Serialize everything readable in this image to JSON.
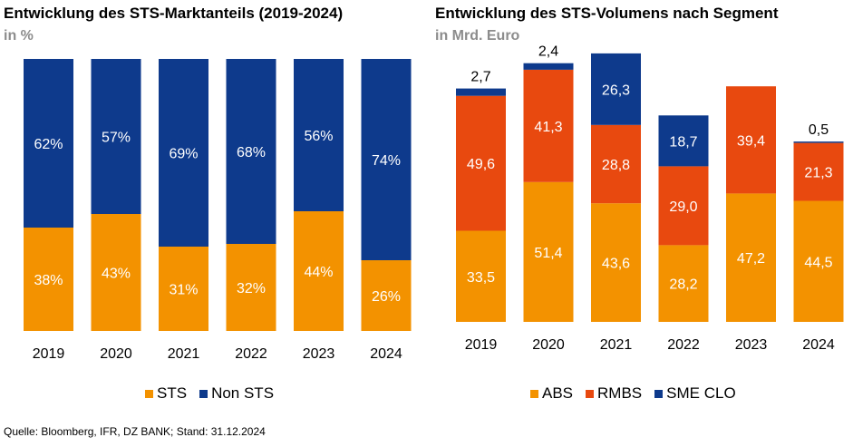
{
  "source": "Quelle: Bloomberg, IFR, DZ BANK; Stand: 31.12.2024",
  "colors": {
    "orange": "#f39200",
    "red": "#e8490f",
    "blue": "#0e3a8c"
  },
  "chart_data": [
    {
      "type": "bar",
      "stacked": true,
      "title": "Entwicklung des STS-Marktanteils (2019-2024)",
      "subtitle": "in %",
      "categories": [
        "2019",
        "2020",
        "2021",
        "2022",
        "2023",
        "2024"
      ],
      "series": [
        {
          "name": "STS",
          "color": "#f39200",
          "values": [
            38,
            43,
            31,
            32,
            44,
            26
          ],
          "labels": [
            "38%",
            "43%",
            "31%",
            "32%",
            "44%",
            "26%"
          ]
        },
        {
          "name": "Non STS",
          "color": "#0e3a8c",
          "values": [
            62,
            57,
            69,
            68,
            56,
            74
          ],
          "labels": [
            "62%",
            "57%",
            "69%",
            "68%",
            "56%",
            "74%"
          ]
        }
      ],
      "ylim": [
        0,
        100
      ],
      "legend_position": "bottom",
      "grid": false
    },
    {
      "type": "bar",
      "stacked": true,
      "title": "Entwicklung des STS-Volumens nach Segment",
      "subtitle": "in Mrd. Euro",
      "categories": [
        "2019",
        "2020",
        "2021",
        "2022",
        "2023",
        "2024"
      ],
      "series": [
        {
          "name": "ABS",
          "color": "#f39200",
          "values": [
            33.5,
            51.4,
            43.6,
            28.2,
            47.2,
            44.5
          ],
          "labels": [
            "33,5",
            "51,4",
            "43,6",
            "28,2",
            "47,2",
            "44,5"
          ]
        },
        {
          "name": "RMBS",
          "color": "#e8490f",
          "values": [
            49.6,
            41.3,
            28.8,
            29.0,
            39.4,
            21.3
          ],
          "labels": [
            "49,6",
            "41,3",
            "28,8",
            "29,0",
            "39,4",
            "21,3"
          ]
        },
        {
          "name": "SME CLO",
          "color": "#0e3a8c",
          "values": [
            2.7,
            2.4,
            26.3,
            18.7,
            0,
            0.5
          ],
          "labels": [
            "2,7",
            "2,4",
            "26,3",
            "18,7",
            "",
            "0,5"
          ]
        }
      ],
      "ylim": [
        0,
        100
      ],
      "legend_position": "bottom",
      "grid": false
    }
  ]
}
